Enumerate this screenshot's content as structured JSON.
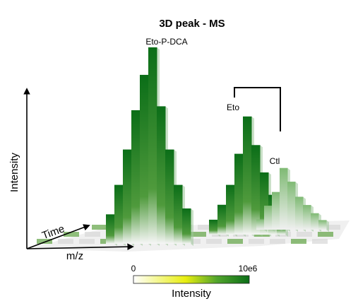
{
  "chart_data": {
    "type": "bar",
    "title": "3D peak - MS",
    "axes": {
      "vertical": "Intensity",
      "depth": "Time",
      "horizontal": "m/z"
    },
    "colorbar": {
      "min_label": "0",
      "max_label": "10e6",
      "title": "Intensity",
      "min": 0,
      "max": 10000000
    },
    "colors": {
      "low": "#ffffff",
      "mid": "#e8ee10",
      "high": "#0b6e18"
    },
    "series": [
      {
        "name": "Eto-P-DCA",
        "values": [
          0.15,
          0.3,
          0.48,
          0.68,
          0.86,
          1.0,
          0.7,
          0.48,
          0.3,
          0.18
        ]
      },
      {
        "name": "Eto",
        "values": [
          0.12,
          0.24,
          0.4,
          0.65,
          0.95,
          0.72,
          0.5,
          0.32,
          0.18
        ]
      },
      {
        "name": "Ctl",
        "values": [
          0.15,
          0.35,
          0.55,
          0.9,
          0.7,
          0.48,
          0.36,
          0.24,
          0.14
        ]
      }
    ]
  }
}
